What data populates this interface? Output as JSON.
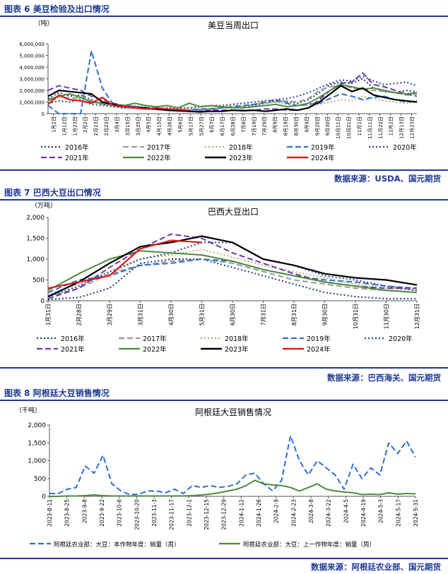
{
  "figures": [
    {
      "caption": "图表 6 美豆检验及出口情况",
      "source": "数据来源：USDA、国元期货",
      "chart_data": {
        "type": "line",
        "title": "美豆当周出口",
        "ylabel": "（吨）",
        "ylim": [
          0,
          6000000
        ],
        "yticks": [
          "0",
          "1,000,000",
          "2,000,000",
          "3,000,000",
          "4,000,000",
          "5,000,000",
          "6,000,000"
        ],
        "xticks": [
          "1月2日",
          "1月12日",
          "1月23日",
          "2月2日",
          "2月13日",
          "2月23日",
          "3月4日",
          "3月15日",
          "3月25日",
          "4月5日",
          "4月15日",
          "4月26日",
          "5月6日",
          "5月17日",
          "5月27日",
          "6月7日",
          "6月17日",
          "6月28日",
          "7月8日",
          "7月19日",
          "7月29日",
          "8月9日",
          "8月19日",
          "8月30日",
          "9月9日",
          "9月20日",
          "9月30日",
          "10月11日",
          "10月21日",
          "11月1日",
          "11月11日",
          "11月22日",
          "12月2日",
          "12月13日",
          "12月23日"
        ],
        "series": [
          {
            "name": "2016年",
            "color": "#1f3a78",
            "dash": "2,3",
            "width": 2,
            "x0": 0,
            "values": [
              1300000,
              1800000,
              1500000,
              1600000,
              1200000,
              800000,
              700000,
              500000,
              600000,
              500000,
              400000,
              300000,
              300000,
              300000,
              350000,
              400000,
              500000,
              500000,
              600000,
              700000,
              900000,
              1100000,
              1000000,
              900000,
              1200000,
              1800000,
              2500000,
              2700000,
              2600000,
              3000000,
              2200000,
              1900000,
              1800000,
              2000000,
              1900000
            ]
          },
          {
            "name": "2017年",
            "color": "#9a9a9a",
            "dash": "8,4",
            "width": 2,
            "x0": 0,
            "values": [
              1100000,
              1500000,
              1300000,
              1400000,
              1100000,
              900000,
              700000,
              600000,
              500000,
              400000,
              350000,
              300000,
              300000,
              350000,
              300000,
              400000,
              500000,
              500000,
              600000,
              800000,
              900000,
              1000000,
              1100000,
              1000000,
              1300000,
              2000000,
              2300000,
              2500000,
              2200000,
              2100000,
              2000000,
              1900000,
              1800000,
              1600000,
              1700000
            ]
          },
          {
            "name": "2018年",
            "color": "#b4b36a",
            "dash": "2,3",
            "width": 2,
            "x0": 0,
            "values": [
              1000000,
              1400000,
              1200000,
              1300000,
              1000000,
              800000,
              700000,
              600000,
              700000,
              600000,
              500000,
              400000,
              400000,
              500000,
              400000,
              500000,
              600000,
              700000,
              700000,
              800000,
              900000,
              1000000,
              800000,
              700000,
              700000,
              800000,
              1000000,
              1200000,
              1100000,
              1500000,
              1300000,
              1100000,
              1000000,
              900000,
              1000000
            ]
          },
          {
            "name": "2019年",
            "color": "#2e6fd1",
            "dash": "8,4",
            "width": 2,
            "x0": 0,
            "values": [
              700000,
              0,
              0,
              0,
              5400000,
              2200000,
              800000,
              700000,
              600000,
              500000,
              400000,
              300000,
              300000,
              300000,
              400000,
              400000,
              500000,
              600000,
              700000,
              800000,
              1000000,
              1200000,
              900000,
              700000,
              800000,
              900000,
              1300000,
              1700000,
              1500000,
              1200000,
              1400000,
              1500000,
              1200000,
              1000000,
              1100000
            ]
          },
          {
            "name": "2020年",
            "color": "#3a4f9c",
            "dash": "2,3",
            "width": 2.2,
            "x0": 0,
            "values": [
              900000,
              1100000,
              1000000,
              1200000,
              800000,
              700000,
              600000,
              500000,
              500000,
              400000,
              400000,
              500000,
              500000,
              500000,
              600000,
              700000,
              700000,
              800000,
              900000,
              1000000,
              1100000,
              1200000,
              1300000,
              1500000,
              1800000,
              2200000,
              2600000,
              2900000,
              2800000,
              3200000,
              2800000,
              2500000,
              2600000,
              2700000,
              2400000
            ]
          },
          {
            "name": "2021年",
            "color": "#6a3aa8",
            "dash": "8,4",
            "width": 2,
            "x0": 0,
            "values": [
              2000000,
              2400000,
              2200000,
              2000000,
              1500000,
              1200000,
              900000,
              700000,
              600000,
              500000,
              400000,
              300000,
              300000,
              200000,
              200000,
              300000,
              300000,
              300000,
              300000,
              300000,
              400000,
              400000,
              300000,
              300000,
              500000,
              1200000,
              2000000,
              2600000,
              2700000,
              3500000,
              2500000,
              2300000,
              2000000,
              1700000,
              1500000
            ]
          },
          {
            "name": "2022年",
            "color": "#4e8a3a",
            "dash": "",
            "width": 2,
            "x0": 0,
            "values": [
              1200000,
              1500000,
              1700000,
              1400000,
              1000000,
              900000,
              800000,
              700000,
              900000,
              700000,
              600000,
              700000,
              500000,
              900000,
              600000,
              700000,
              600000,
              500000,
              500000,
              600000,
              700000,
              800000,
              600000,
              700000,
              900000,
              1400000,
              2000000,
              2500000,
              2300000,
              2100000,
              2200000,
              2000000,
              1800000,
              1700000,
              1800000
            ]
          },
          {
            "name": "2023年",
            "color": "#000000",
            "dash": "",
            "width": 2.2,
            "x0": 0,
            "values": [
              1500000,
              2000000,
              1900000,
              1800000,
              1700000,
              1000000,
              800000,
              600000,
              500000,
              500000,
              400000,
              300000,
              250000,
              200000,
              150000,
              200000,
              200000,
              300000,
              250000,
              300000,
              200000,
              300000,
              400000,
              300000,
              500000,
              1000000,
              1700000,
              2400000,
              1900000,
              2200000,
              1600000,
              1400000,
              1200000,
              1100000,
              1000000
            ]
          },
          {
            "name": "2024年",
            "color": "#e21a1a",
            "dash": "",
            "width": 2.2,
            "x0": 0,
            "values": [
              800000,
              1600000,
              1200000,
              1100000,
              900000,
              1400000,
              700000,
              600000,
              500000,
              400000,
              500000,
              400000,
              350000,
              300000
            ]
          }
        ]
      }
    },
    {
      "caption": "图表 7 巴西大豆出口情况",
      "source": "数据来源：巴西海关、国元期货",
      "chart_data": {
        "type": "line",
        "title": "巴西大豆出口",
        "ylabel": "（万吨）",
        "ylim": [
          0,
          2000
        ],
        "yticks": [
          "0",
          "500",
          "1,000",
          "1,500",
          "2,000"
        ],
        "xticks": [
          "1月31日",
          "2月28日",
          "3月29日",
          "3月31日",
          "4月30日",
          "5月31日",
          "6月30日",
          "7月31日",
          "8月31日",
          "9月30日",
          "10月31日",
          "11月30日",
          "12月31日"
        ],
        "series": [
          {
            "name": "2016年",
            "color": "#1f3a78",
            "dash": "2,3",
            "width": 2,
            "values": [
              30,
              80,
              300,
              900,
              1000,
              1000,
              800,
              600,
              400,
              200,
              100,
              50,
              50
            ]
          },
          {
            "name": "2017年",
            "color": "#9a9a9a",
            "dash": "8,4",
            "width": 2,
            "values": [
              100,
              300,
              650,
              850,
              950,
              1000,
              900,
              700,
              500,
              400,
              300,
              250,
              200
            ]
          },
          {
            "name": "2018年",
            "color": "#b4b36a",
            "dash": "2,3",
            "width": 2,
            "values": [
              150,
              400,
              650,
              1000,
              1100,
              1230,
              1050,
              850,
              700,
              550,
              400,
              300,
              250
            ]
          },
          {
            "name": "2019年",
            "color": "#2e6fd1",
            "dash": "8,4",
            "width": 2,
            "values": [
              200,
              500,
              600,
              850,
              900,
              1000,
              950,
              750,
              600,
              500,
              450,
              350,
              300
            ]
          },
          {
            "name": "2020年",
            "color": "#3a4f9c",
            "dash": "2,3",
            "width": 2.2,
            "values": [
              100,
              350,
              700,
              1000,
              1150,
              1400,
              1400,
              1000,
              850,
              600,
              500,
              350,
              250
            ]
          },
          {
            "name": "2021年",
            "color": "#6a3aa8",
            "dash": "8,4",
            "width": 2,
            "values": [
              50,
              300,
              800,
              1250,
              1600,
              1500,
              1150,
              900,
              650,
              450,
              350,
              300,
              300
            ]
          },
          {
            "name": "2022年",
            "color": "#4e8a3a",
            "dash": "",
            "width": 2,
            "values": [
              250,
              650,
              1000,
              1200,
              1150,
              1100,
              950,
              750,
              600,
              450,
              350,
              250,
              200
            ]
          },
          {
            "name": "2023年",
            "color": "#000000",
            "dash": "",
            "width": 2.2,
            "values": [
              100,
              450,
              900,
              1300,
              1400,
              1550,
              1400,
              1000,
              850,
              650,
              550,
              500,
              380
            ]
          },
          {
            "name": "2024年",
            "color": "#e21a1a",
            "dash": "",
            "width": 2.2,
            "values": [
              300,
              450,
              600,
              1250,
              1450,
              1400
            ]
          }
        ]
      }
    },
    {
      "caption": "图表 8 阿根廷大豆销售情况",
      "source": "数据来源：阿根廷农业部、国元期货",
      "chart_data": {
        "type": "line",
        "title": "阿根廷大豆销售情况",
        "ylabel": "（千吨）",
        "ylim": [
          0,
          2000
        ],
        "yticks": [
          "0",
          "500",
          "1,000",
          "1,500",
          "2,000"
        ],
        "xticks": [
          "2023-8-11",
          "2023-8-25",
          "2023-9-8",
          "2023-9-22",
          "2023-10-6",
          "2023-10-20",
          "2023-11-3",
          "2023-11-17",
          "2023-12-1",
          "2023-12-15",
          "2023-12-29",
          "2024-1-12",
          "2024-1-26",
          "2024-2-9",
          "2024-2-23",
          "2024-3-8",
          "2024-3-22",
          "2024-4-5",
          "2024-4-19",
          "2024-5-3",
          "2024-5-17",
          "2024-5-31"
        ],
        "series": [
          {
            "name": "阿根廷农业部：大豆：本作物年度：销量（周）",
            "color": "#2e6fd1",
            "dash": "8,4",
            "width": 2,
            "values": [
              80,
              80,
              200,
              250,
              850,
              650,
              1150,
              350,
              150,
              50,
              60,
              150,
              150,
              100,
              200,
              80,
              300,
              250,
              300,
              250,
              280,
              350,
              600,
              650,
              350,
              150,
              450,
              1700,
              1000,
              600,
              1000,
              800,
              600,
              200,
              900,
              500,
              800,
              600,
              1500,
              1200,
              1550,
              1100
            ]
          },
          {
            "name": "阿根廷农业部：大豆：上一作物年度：销量（周）",
            "color": "#4e8a3a",
            "dash": "",
            "width": 2,
            "values": [
              0,
              0,
              10,
              10,
              20,
              40,
              20,
              10,
              10,
              10,
              10,
              10,
              10,
              10,
              10,
              10,
              20,
              40,
              60,
              100,
              150,
              200,
              300,
              450,
              350,
              320,
              300,
              250,
              150,
              250,
              350,
              200,
              150,
              120,
              100,
              50,
              60,
              50,
              100,
              60,
              80,
              70
            ]
          }
        ]
      }
    }
  ]
}
